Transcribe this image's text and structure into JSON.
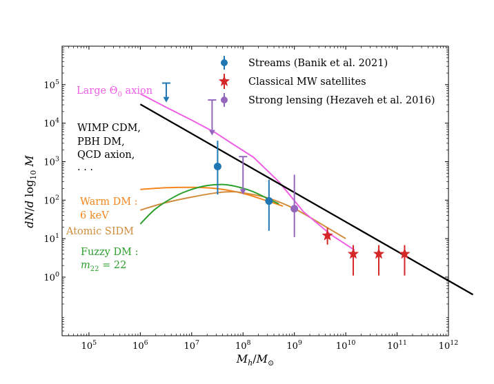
{
  "chart_data": {
    "type": "scatter",
    "xscale": "log",
    "yscale": "log",
    "xlim": [
      30000,
      1000000000000
    ],
    "ylim": [
      0.03,
      1000000
    ],
    "xlabel": "M_h/M_⊙",
    "ylabel": "dN/d log10 M",
    "xticks": [
      {
        "value": 100000,
        "base": "10",
        "exp": "5"
      },
      {
        "value": 1000000,
        "base": "10",
        "exp": "6"
      },
      {
        "value": 10000000,
        "base": "10",
        "exp": "7"
      },
      {
        "value": 100000000,
        "base": "10",
        "exp": "8"
      },
      {
        "value": 1000000000,
        "base": "10",
        "exp": "9"
      },
      {
        "value": 10000000000,
        "base": "10",
        "exp": "10"
      },
      {
        "value": 100000000000,
        "base": "10",
        "exp": "11"
      },
      {
        "value": 1000000000000,
        "base": "10",
        "exp": "12"
      }
    ],
    "yticks": [
      {
        "value": 1,
        "base": "10",
        "exp": "0"
      },
      {
        "value": 10,
        "base": "10",
        "exp": "1"
      },
      {
        "value": 100,
        "base": "10",
        "exp": "2"
      },
      {
        "value": 1000,
        "base": "10",
        "exp": "3"
      },
      {
        "value": 10000,
        "base": "10",
        "exp": "4"
      },
      {
        "value": 100000,
        "base": "10",
        "exp": "5"
      }
    ],
    "series": [
      {
        "name": "WIMP CDM",
        "kind": "line",
        "color": "#000000",
        "x": [
          1000000,
          3000000000000
        ],
        "y": [
          31000,
          0.35
        ]
      },
      {
        "name": "Large Θ0 axion",
        "kind": "line",
        "color": "#ee5fe4",
        "x": [
          1000000,
          3000000,
          10000000,
          30000000,
          60000000,
          160000000,
          500000000,
          1500000000,
          5000000000,
          15000000000
        ],
        "y": [
          58000,
          27000,
          12000,
          5500,
          3000,
          1300,
          300,
          50,
          13,
          5
        ]
      },
      {
        "name": "Warm DM",
        "kind": "line",
        "color": "#f3851c",
        "x": [
          1000000,
          3000000,
          10000000,
          30000000,
          100000000,
          300000000,
          600000000
        ],
        "y": [
          190,
          210,
          215,
          200,
          150,
          95,
          70
        ]
      },
      {
        "name": "Atomic SIDM",
        "kind": "line",
        "color": "#d08c3c",
        "x": [
          1000000,
          3000000,
          10000000,
          30000000,
          60000000,
          100000000,
          300000000,
          1000000000,
          3000000000,
          10000000000
        ],
        "y": [
          55,
          85,
          120,
          155,
          165,
          155,
          115,
          60,
          26,
          10
        ]
      },
      {
        "name": "Fuzzy DM",
        "kind": "line",
        "color": "#2ca02c",
        "x": [
          1000000,
          2000000,
          5000000,
          10000000,
          20000000,
          40000000,
          70000000,
          150000000,
          300000000,
          500000000
        ],
        "y": [
          24,
          60,
          130,
          190,
          240,
          255,
          230,
          170,
          110,
          80
        ]
      }
    ],
    "points": [
      {
        "name": "Streams (Banik et al. 2021)",
        "color": "#1f77b4",
        "marker": "circle",
        "data": [
          {
            "x": 32000000,
            "y": 750,
            "ylo": 140,
            "yhi": 3500
          },
          {
            "x": 320000000,
            "y": 95,
            "ylo": 16,
            "yhi": 340
          }
        ],
        "limits": [
          {
            "x": 3200000,
            "from": 110000,
            "to": 36000
          }
        ]
      },
      {
        "name": "Classical MW satellites",
        "color": "#d62728",
        "marker": "star",
        "data": [
          {
            "x": 4400000000,
            "y": 12,
            "ylo": 7,
            "yhi": 19
          },
          {
            "x": 14000000000,
            "y": 4,
            "ylo": 1.1,
            "yhi": 6.8
          },
          {
            "x": 44000000000,
            "y": 4,
            "ylo": 1.1,
            "yhi": 6.8
          },
          {
            "x": 140000000000,
            "y": 4,
            "ylo": 1.1,
            "yhi": 6.8
          }
        ]
      },
      {
        "name": "Strong lensing (Hezaveh et al. 2016)",
        "color": "#9467bd",
        "marker": "circle",
        "data": [
          {
            "x": 1000000000,
            "y": 60,
            "ylo": 11,
            "yhi": 460
          }
        ],
        "limits": [
          {
            "x": 25000000,
            "from": 40000,
            "to": 5000
          },
          {
            "x": 100000000,
            "from": 1350,
            "to": 145
          }
        ]
      }
    ],
    "legend": {
      "position": "upper-right",
      "entries": [
        "Streams (Banik et al. 2021)",
        "Classical MW satellites",
        "Strong lensing (Hezaveh et al. 2016)"
      ]
    },
    "annotations": {
      "axion": {
        "text": "Large Θ0 axion",
        "color": "#ee5fe4"
      },
      "cdm": {
        "lines": [
          "WIMP CDM,",
          "PBH DM,",
          "QCD axion,",
          ". . ."
        ],
        "color": "#000000"
      },
      "warm": {
        "lines": [
          "Warm DM :",
          "6 keV"
        ],
        "color": "#f3851c"
      },
      "sidm": {
        "text": "Atomic SIDM",
        "color": "#d08c3c"
      },
      "fuzzy": {
        "lines": [
          "Fuzzy DM :",
          "m22 = 22"
        ],
        "color": "#2ca02c"
      }
    }
  }
}
